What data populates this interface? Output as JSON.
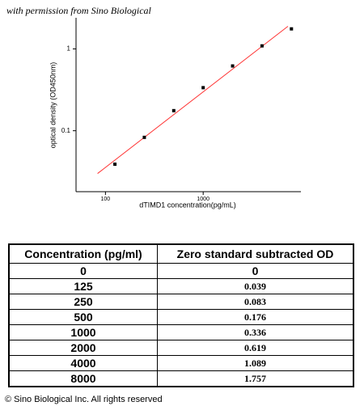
{
  "note": "with permission from Sino Biological",
  "chart_data": {
    "type": "scatter",
    "x_label": "dTIMD1 concentration(pg/mL)",
    "y_label": "optical density (OD450nm)",
    "x": [
      125,
      250,
      500,
      1000,
      2000,
      4000,
      8000
    ],
    "values": [
      0.039,
      0.083,
      0.176,
      0.336,
      0.619,
      1.089,
      1.757
    ],
    "color": "#000000",
    "fit": {
      "x": [
        83,
        7370
      ],
      "y": [
        0.03,
        1.89
      ],
      "color": "#ff3333"
    },
    "xlim": [
      50,
      10000
    ],
    "ylim": [
      0.018,
      2.4
    ],
    "xticks": [
      100,
      1000
    ],
    "yticks": [
      0.1,
      1
    ],
    "log_x": true,
    "log_y": true
  },
  "table": {
    "header": [
      "Concentration (pg/ml)",
      "Zero standard subtracted OD"
    ],
    "rows": [
      [
        "0",
        "0"
      ],
      [
        "125",
        "0.039"
      ],
      [
        "250",
        "0.083"
      ],
      [
        "500",
        "0.176"
      ],
      [
        "1000",
        "0.336"
      ],
      [
        "2000",
        "0.619"
      ],
      [
        "4000",
        "1.089"
      ],
      [
        "8000",
        "1.757"
      ]
    ]
  },
  "footer": "© Sino Biological Inc. All rights reserved"
}
